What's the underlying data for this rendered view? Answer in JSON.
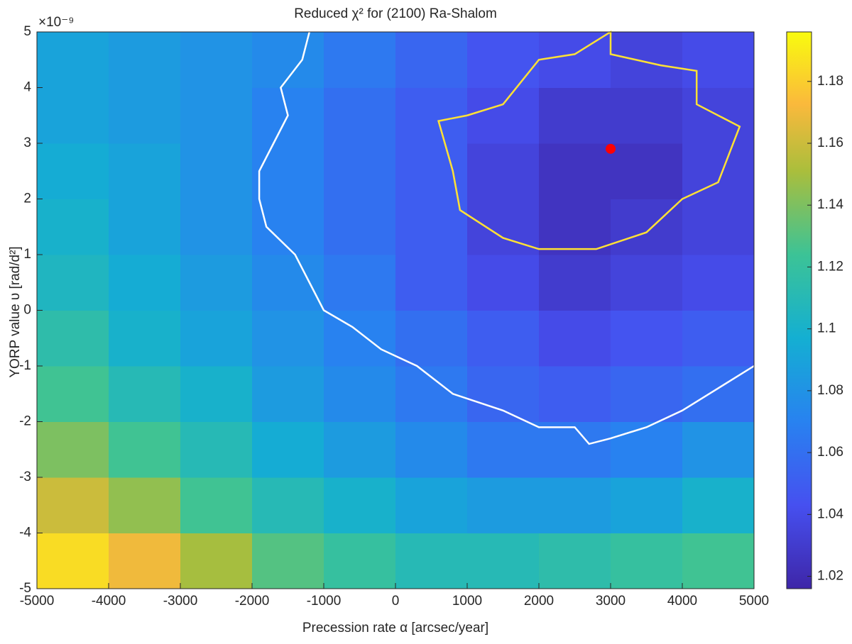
{
  "chart_data": {
    "type": "heatmap",
    "title": "Reduced χ² for (2100) Ra-Shalom",
    "x_label": "Precession rate α [arcsec/year]",
    "y_label": "YORP value υ [rad/d²]",
    "y_exponent_label": "×10⁻⁹",
    "x": [
      -4500,
      -3500,
      -2500,
      -1500,
      -500,
      500,
      1500,
      2500,
      3500,
      4500
    ],
    "y": [
      -4.5e-09,
      -3.5e-09,
      -2.5e-09,
      -1.5e-09,
      -5e-10,
      5e-10,
      1.5e-09,
      2.5e-09,
      3.5e-09,
      4.5e-09
    ],
    "z": [
      [
        1.185,
        1.17,
        1.15,
        1.13,
        1.12,
        1.11,
        1.11,
        1.115,
        1.12,
        1.125
      ],
      [
        1.16,
        1.145,
        1.125,
        1.11,
        1.1,
        1.09,
        1.085,
        1.085,
        1.09,
        1.1
      ],
      [
        1.14,
        1.125,
        1.11,
        1.095,
        1.085,
        1.075,
        1.065,
        1.065,
        1.07,
        1.08
      ],
      [
        1.125,
        1.11,
        1.1,
        1.085,
        1.075,
        1.065,
        1.055,
        1.05,
        1.055,
        1.06
      ],
      [
        1.115,
        1.1,
        1.09,
        1.08,
        1.07,
        1.06,
        1.05,
        1.04,
        1.045,
        1.05
      ],
      [
        1.105,
        1.095,
        1.085,
        1.075,
        1.065,
        1.05,
        1.04,
        1.03,
        1.035,
        1.04
      ],
      [
        1.1,
        1.09,
        1.08,
        1.07,
        1.06,
        1.05,
        1.035,
        1.025,
        1.03,
        1.035
      ],
      [
        1.095,
        1.09,
        1.08,
        1.07,
        1.06,
        1.05,
        1.035,
        1.025,
        1.025,
        1.035
      ],
      [
        1.09,
        1.085,
        1.08,
        1.07,
        1.06,
        1.05,
        1.04,
        1.03,
        1.03,
        1.035
      ],
      [
        1.09,
        1.085,
        1.08,
        1.075,
        1.065,
        1.055,
        1.045,
        1.04,
        1.035,
        1.04
      ]
    ],
    "contours": [
      {
        "color": "#ffffff",
        "x": [
          -1200,
          -1300,
          -1600,
          -1500,
          -1700,
          -1900,
          -1900,
          -1800,
          -1400,
          -1200,
          -1000,
          -600,
          -200,
          300,
          800,
          1500,
          2000,
          2500,
          2700,
          3000,
          3500,
          4000,
          4500,
          5000
        ],
        "y": [
          5e-09,
          4.5e-09,
          4e-09,
          3.5e-09,
          3e-09,
          2.5e-09,
          2e-09,
          1.5e-09,
          1e-09,
          5e-10,
          0,
          -3e-10,
          -7e-10,
          -1e-09,
          -1.5e-09,
          -1.8e-09,
          -2.1e-09,
          -2.1e-09,
          -2.4e-09,
          -2.3e-09,
          -2.1e-09,
          -1.8e-09,
          -1.4e-09,
          -1e-09
        ]
      },
      {
        "color": "#ffe135",
        "x": [
          1000,
          1500,
          2000,
          2500,
          3000,
          3000,
          3700,
          4200,
          4200,
          4800,
          4500,
          4000,
          3500,
          2800,
          2000,
          1500,
          900,
          800,
          600,
          1000
        ],
        "y": [
          3.5e-09,
          3.7e-09,
          4.5e-09,
          4.6e-09,
          5e-09,
          4.6e-09,
          4.4e-09,
          4.3e-09,
          3.7e-09,
          3.3e-09,
          2.3e-09,
          2e-09,
          1.4e-09,
          1.1e-09,
          1.1e-09,
          1.3e-09,
          1.8e-09,
          2.5e-09,
          3.4e-09,
          3.5e-09
        ]
      }
    ],
    "point": {
      "x": 3000,
      "y": 2.9e-09,
      "color": "#ff0000"
    },
    "xlim": [
      -5000,
      5000
    ],
    "xticks": [
      -5000,
      -4000,
      -3000,
      -2000,
      -1000,
      0,
      1000,
      2000,
      3000,
      4000,
      5000
    ],
    "ylim": [
      -5e-09,
      5e-09
    ],
    "yticks": [
      {
        "value": -5e-09,
        "label": "-5"
      },
      {
        "value": -4e-09,
        "label": "-4"
      },
      {
        "value": -3e-09,
        "label": "-3"
      },
      {
        "value": -2e-09,
        "label": "-2"
      },
      {
        "value": -1e-09,
        "label": "-1"
      },
      {
        "value": 0,
        "label": "0"
      },
      {
        "value": 1e-09,
        "label": "1"
      },
      {
        "value": 2e-09,
        "label": "2"
      },
      {
        "value": 3e-09,
        "label": "3"
      },
      {
        "value": 4e-09,
        "label": "4"
      },
      {
        "value": 5e-09,
        "label": "5"
      }
    ],
    "clim": [
      1.016,
      1.196
    ],
    "cticks": [
      1.02,
      1.04,
      1.06,
      1.08,
      1.1,
      1.12,
      1.14,
      1.16,
      1.18
    ],
    "colormap": "parula"
  }
}
